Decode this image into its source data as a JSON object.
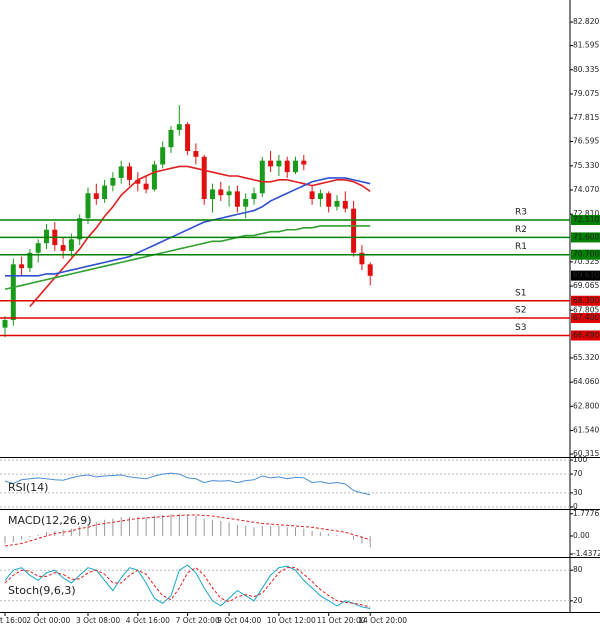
{
  "chart_data": [
    {
      "type": "candlestick",
      "categories": [
        "t 16:00",
        null,
        null,
        null,
        "2 Oct 00:00",
        null,
        null,
        null,
        null,
        null,
        "3 Oct 08:00",
        null,
        null,
        null,
        null,
        null,
        "4 Oct 16:00",
        null,
        null,
        null,
        null,
        null,
        "7 Oct 20:00",
        null,
        null,
        null,
        null,
        "9 Oct 04:00",
        null,
        null,
        null,
        null,
        null,
        "10 Oct 12:00",
        null,
        null,
        null,
        null,
        null,
        "11 Oct 20:00",
        null,
        null,
        null,
        null,
        "14 Oct 20:00"
      ],
      "open": [
        66.9,
        67.3,
        70.2,
        70.0,
        70.8,
        71.3,
        72.0,
        71.2,
        70.9,
        71.5,
        72.6,
        73.9,
        73.6,
        74.3,
        74.7,
        75.3,
        74.6,
        74.4,
        74.1,
        75.4,
        76.3,
        77.2,
        77.5,
        76.1,
        75.8,
        73.6,
        74.1,
        73.8,
        74.0,
        73.2,
        73.6,
        73.9,
        75.6,
        75.3,
        75.6,
        75.0,
        75.6,
        74.0,
        73.6,
        73.9,
        73.2,
        73.5,
        73.1,
        70.8,
        70.2
      ],
      "high": [
        67.5,
        70.5,
        70.6,
        71.0,
        71.5,
        72.3,
        72.4,
        71.6,
        71.8,
        72.8,
        74.2,
        74.4,
        74.6,
        75.0,
        75.6,
        75.5,
        75.0,
        74.8,
        75.6,
        76.6,
        77.4,
        78.5,
        77.6,
        76.5,
        75.9,
        74.4,
        74.5,
        74.3,
        74.3,
        73.9,
        74.2,
        75.8,
        76.1,
        75.9,
        75.8,
        75.8,
        75.9,
        74.3,
        74.1,
        74.0,
        73.8,
        74.0,
        73.5,
        71.2,
        70.3
      ],
      "low": [
        66.4,
        67.0,
        69.6,
        69.8,
        70.3,
        71.0,
        70.9,
        70.5,
        70.6,
        71.2,
        72.3,
        73.3,
        73.4,
        74.0,
        74.4,
        74.3,
        74.0,
        73.9,
        74.0,
        75.2,
        76.0,
        76.9,
        75.9,
        75.4,
        73.3,
        72.9,
        73.5,
        73.2,
        72.9,
        72.6,
        73.3,
        73.7,
        75.0,
        74.8,
        74.7,
        74.9,
        75.1,
        73.3,
        73.2,
        72.9,
        73.0,
        72.9,
        70.6,
        69.9,
        69.1
      ],
      "close": [
        67.3,
        70.2,
        70.0,
        70.8,
        71.3,
        72.0,
        71.2,
        70.9,
        71.5,
        72.6,
        73.9,
        73.6,
        74.3,
        74.7,
        75.3,
        74.6,
        74.4,
        74.1,
        75.4,
        76.3,
        77.2,
        77.5,
        76.1,
        75.8,
        73.6,
        74.1,
        73.8,
        74.0,
        73.2,
        73.6,
        73.9,
        75.6,
        75.3,
        75.6,
        75.0,
        75.6,
        75.4,
        73.6,
        73.9,
        73.2,
        73.5,
        73.1,
        70.8,
        70.2,
        69.6
      ],
      "up_color": "#1a9a1a",
      "down_color": "#e01010",
      "series": [
        {
          "color": "#e02020",
          "values": [
            null,
            null,
            null,
            68.0,
            68.5,
            69.0,
            69.5,
            70.0,
            70.5,
            71.0,
            71.6,
            72.1,
            72.7,
            73.2,
            73.8,
            74.2,
            74.6,
            74.8,
            75.0,
            75.1,
            75.2,
            75.3,
            75.3,
            75.2,
            75.1,
            75.0,
            74.9,
            74.8,
            74.8,
            74.7,
            74.6,
            74.5,
            74.5,
            74.6,
            74.6,
            74.5,
            74.4,
            74.3,
            74.4,
            74.5,
            74.6,
            74.6,
            74.5,
            74.3,
            74.0
          ]
        },
        {
          "color": "#3050d0",
          "values": [
            69.6,
            69.6,
            69.6,
            69.6,
            69.6,
            69.7,
            69.7,
            69.8,
            69.9,
            70.0,
            70.1,
            70.2,
            70.3,
            70.4,
            70.5,
            70.6,
            70.8,
            71.0,
            71.2,
            71.4,
            71.6,
            71.8,
            72.0,
            72.2,
            72.4,
            72.5,
            72.6,
            72.7,
            72.8,
            72.9,
            73.0,
            73.2,
            73.5,
            73.7,
            73.9,
            74.1,
            74.3,
            74.5,
            74.6,
            74.7,
            74.7,
            74.7,
            74.6,
            74.5,
            74.4
          ]
        },
        {
          "color": "#30a030",
          "values": [
            68.9,
            69.0,
            69.1,
            69.2,
            69.3,
            69.4,
            69.5,
            69.6,
            69.7,
            69.8,
            69.9,
            70.0,
            70.1,
            70.2,
            70.3,
            70.4,
            70.5,
            70.6,
            70.7,
            70.8,
            70.9,
            71.0,
            71.1,
            71.2,
            71.3,
            71.4,
            71.4,
            71.5,
            71.6,
            71.7,
            71.7,
            71.8,
            71.9,
            71.9,
            72.0,
            72.0,
            72.1,
            72.1,
            72.2,
            72.2,
            72.2,
            72.2,
            72.2,
            72.2,
            72.2
          ]
        }
      ],
      "levels": [
        {
          "name": "R3",
          "value": 72.51,
          "label": "72.510",
          "color": "#008000"
        },
        {
          "name": "R2",
          "value": 71.6,
          "label": "71.600",
          "color": "#008000"
        },
        {
          "name": "R1",
          "value": 70.7,
          "label": "70.700",
          "color": "#008000"
        },
        {
          "name": "S1",
          "value": 68.3,
          "label": "68.300",
          "color": "#e00000"
        },
        {
          "name": "S2",
          "value": 67.4,
          "label": "67.400",
          "color": "#e00000"
        },
        {
          "name": "S3",
          "value": 66.49,
          "label": "66.490",
          "color": "#e00000"
        }
      ],
      "last": {
        "value": 69.61,
        "label": "69.610"
      },
      "ylim": [
        60.16,
        83.97
      ],
      "yticks": [
        {
          "value": 82.82,
          "label": "82.820"
        },
        {
          "value": 81.595,
          "label": "81.595"
        },
        {
          "value": 80.335,
          "label": "80.335"
        },
        {
          "value": 79.075,
          "label": "79.075"
        },
        {
          "value": 77.815,
          "label": "77.815"
        },
        {
          "value": 76.595,
          "label": "76.595"
        },
        {
          "value": 75.33,
          "label": "75.330"
        },
        {
          "value": 74.07,
          "label": "74.070"
        },
        {
          "value": 72.81,
          "label": "72.810"
        },
        {
          "value": 70.325,
          "label": "70.325"
        },
        {
          "value": 69.065,
          "label": "69.065"
        },
        {
          "value": 67.805,
          "label": "67.805"
        },
        {
          "value": 65.32,
          "label": "65.320"
        },
        {
          "value": 64.06,
          "label": "64.060"
        },
        {
          "value": 62.8,
          "label": "62.800"
        },
        {
          "value": 61.54,
          "label": "61.540"
        },
        {
          "value": 60.315,
          "label": "60.315"
        }
      ],
      "grid": false
    },
    {
      "type": "line",
      "title": "RSI(14)",
      "ylim": [
        0,
        100
      ],
      "yticks": [
        100,
        70,
        30,
        0
      ],
      "grid": true,
      "series": [
        {
          "color": "#4a8fd0",
          "values": [
            55,
            50,
            58,
            60,
            62,
            60,
            58,
            57,
            62,
            66,
            68,
            64,
            66,
            67,
            68,
            64,
            62,
            60,
            66,
            70,
            72,
            70,
            62,
            60,
            52,
            56,
            55,
            56,
            52,
            56,
            58,
            66,
            62,
            64,
            60,
            63,
            62,
            52,
            54,
            50,
            52,
            49,
            35,
            30,
            26
          ]
        }
      ]
    },
    {
      "type": "macd",
      "title": "MACD(12,26,9)",
      "ylim": [
        -1.6,
        2.0
      ],
      "yticks": [
        1.7776,
        {
          "value": 0,
          "label": "0.00"
        },
        -1.4372
      ],
      "grid": false,
      "histogram": {
        "color": "#9a9a9a",
        "values": [
          -0.6,
          -0.5,
          -0.3,
          -0.1,
          0.1,
          0.3,
          0.4,
          0.5,
          0.6,
          0.8,
          1.0,
          1.1,
          1.3,
          1.4,
          1.5,
          1.5,
          1.5,
          1.5,
          1.6,
          1.7,
          1.75,
          1.77,
          1.7,
          1.6,
          1.4,
          1.3,
          1.2,
          1.1,
          0.9,
          0.8,
          0.7,
          0.8,
          0.8,
          0.8,
          0.7,
          0.7,
          0.6,
          0.4,
          0.3,
          0.2,
          0.1,
          0.0,
          -0.3,
          -0.6,
          -0.9
        ]
      },
      "signal": {
        "color": "#e02020",
        "values": [
          -0.8,
          -0.7,
          -0.6,
          -0.4,
          -0.2,
          0.0,
          0.2,
          0.3,
          0.4,
          0.6,
          0.7,
          0.9,
          1.0,
          1.1,
          1.2,
          1.3,
          1.4,
          1.45,
          1.5,
          1.55,
          1.6,
          1.65,
          1.68,
          1.68,
          1.65,
          1.6,
          1.5,
          1.4,
          1.3,
          1.2,
          1.1,
          1.0,
          0.95,
          0.9,
          0.85,
          0.8,
          0.75,
          0.7,
          0.6,
          0.5,
          0.4,
          0.3,
          0.1,
          -0.1,
          -0.3
        ]
      }
    },
    {
      "type": "line",
      "title": "Stoch(9,6,3)",
      "ylim": [
        0,
        100
      ],
      "yticks": [
        80,
        20
      ],
      "grid": true,
      "series": [
        {
          "color": "#18a8c8",
          "values": [
            60,
            80,
            85,
            70,
            60,
            75,
            80,
            65,
            55,
            70,
            85,
            80,
            60,
            40,
            65,
            85,
            80,
            55,
            25,
            15,
            30,
            80,
            90,
            75,
            45,
            20,
            10,
            25,
            40,
            30,
            20,
            45,
            70,
            85,
            88,
            80,
            60,
            45,
            30,
            20,
            10,
            20,
            15,
            8,
            5
          ]
        },
        {
          "color": "#e02020",
          "dash": true,
          "values": [
            55,
            70,
            80,
            78,
            68,
            68,
            75,
            72,
            62,
            63,
            75,
            80,
            72,
            55,
            55,
            70,
            80,
            72,
            50,
            30,
            22,
            45,
            75,
            85,
            70,
            45,
            25,
            18,
            28,
            32,
            28,
            35,
            55,
            75,
            85,
            85,
            72,
            58,
            42,
            30,
            20,
            17,
            15,
            12,
            8
          ]
        }
      ]
    }
  ]
}
